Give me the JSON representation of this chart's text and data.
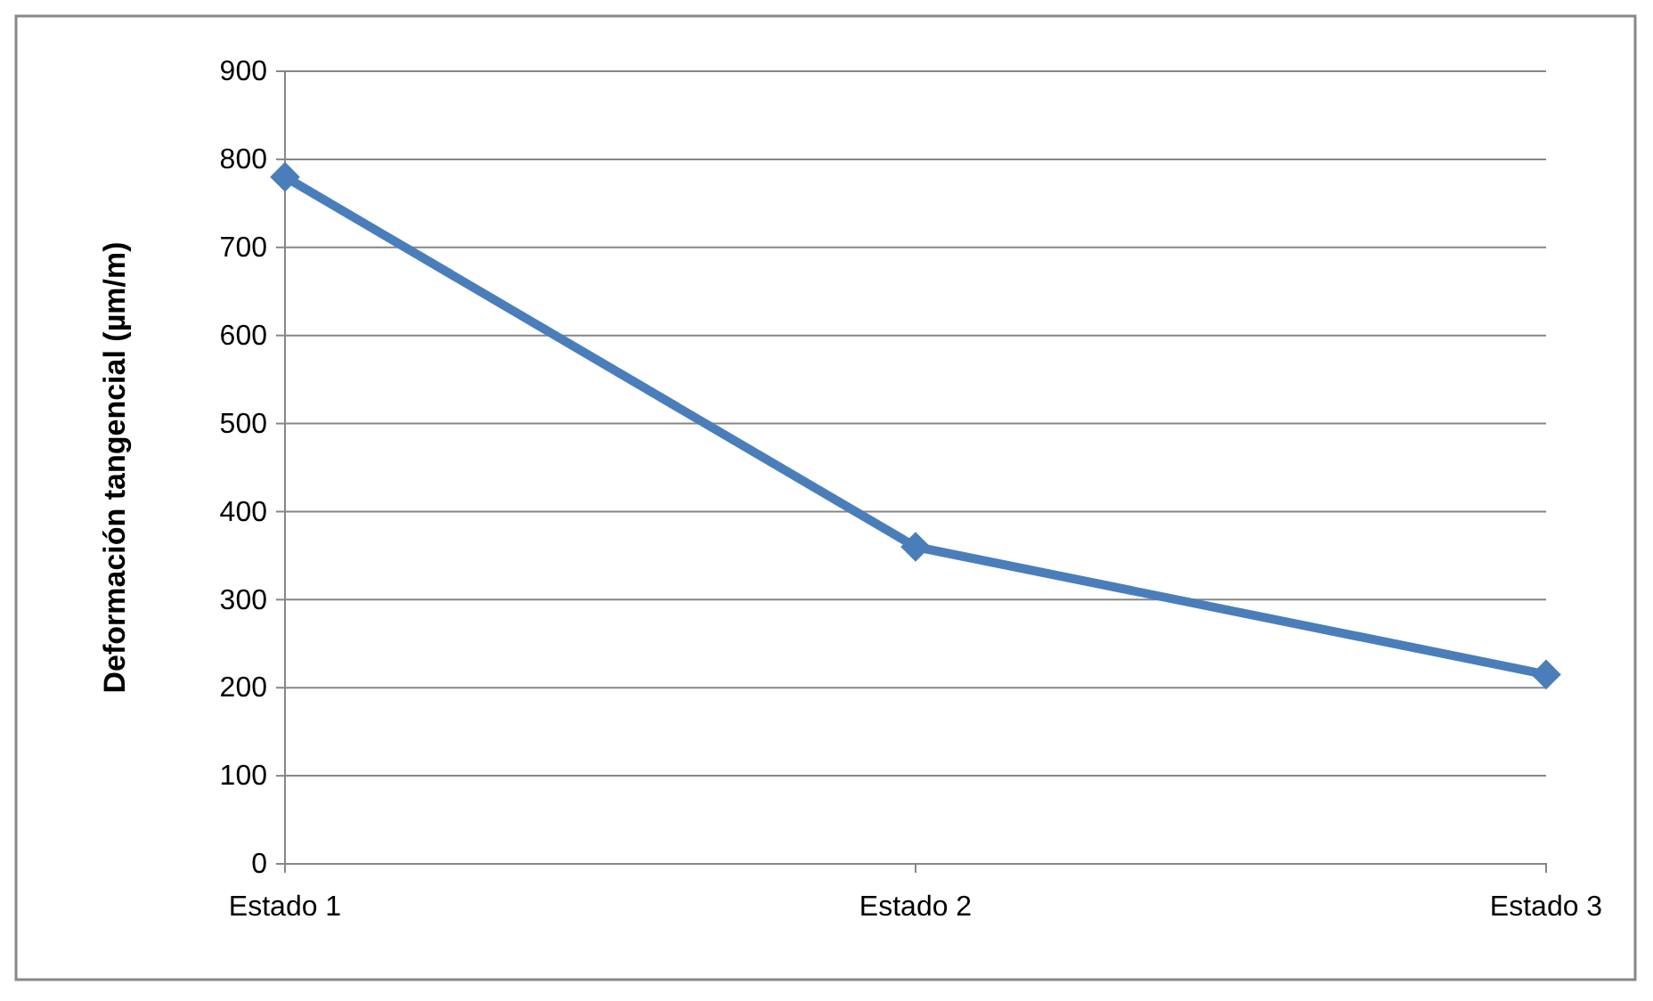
{
  "chart_data": {
    "type": "line",
    "ylabel": "Deformación tangencial (µm/m)",
    "categories": [
      "Estado 1",
      "Estado 2",
      "Estado 3"
    ],
    "series": [
      {
        "color": "#4a7ebb",
        "values": [
          780,
          360,
          215
        ]
      }
    ],
    "ylim": [
      0,
      900
    ],
    "yticks": [
      0,
      100,
      200,
      300,
      400,
      500,
      600,
      700,
      800,
      900
    ],
    "grid": "y",
    "marker": "diamond",
    "line_style": "solid"
  }
}
